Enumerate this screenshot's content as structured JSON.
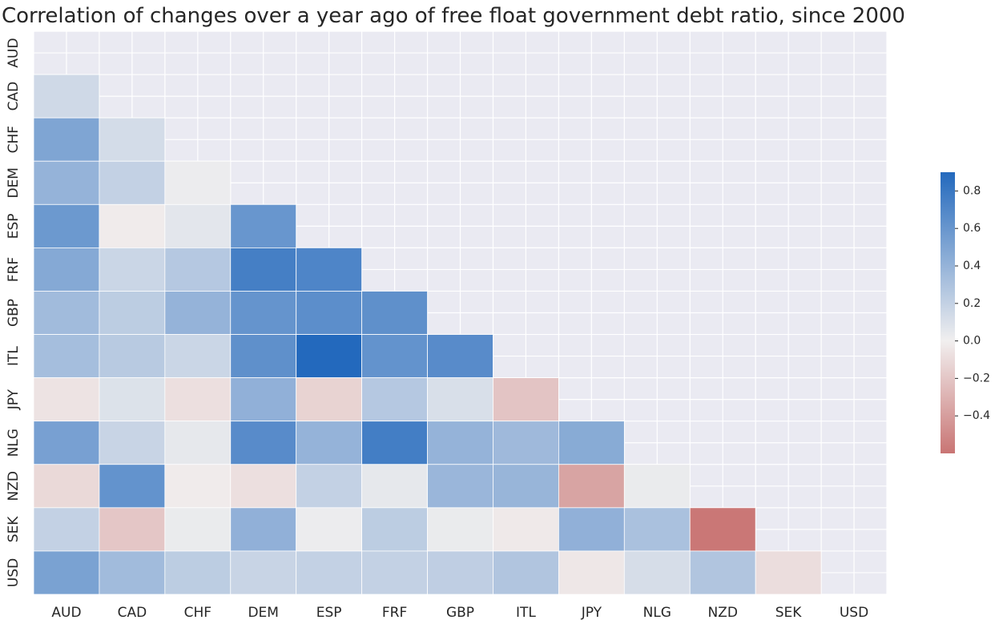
{
  "chart_data": {
    "type": "heatmap",
    "title": "Correlation of changes over a year ago of free float government debt ratio, since 2000",
    "xlabel": "",
    "ylabel": "",
    "categories": [
      "AUD",
      "CAD",
      "CHF",
      "DEM",
      "ESP",
      "FRF",
      "GBP",
      "ITL",
      "JPY",
      "NLG",
      "NZD",
      "SEK",
      "USD"
    ],
    "mask": "upper-triangle-including-diagonal",
    "matrix": [
      [
        null,
        null,
        null,
        null,
        null,
        null,
        null,
        null,
        null,
        null,
        null,
        null,
        null
      ],
      [
        0.15,
        null,
        null,
        null,
        null,
        null,
        null,
        null,
        null,
        null,
        null,
        null,
        null
      ],
      [
        0.5,
        0.13,
        null,
        null,
        null,
        null,
        null,
        null,
        null,
        null,
        null,
        null,
        null
      ],
      [
        0.4,
        0.2,
        0.02,
        null,
        null,
        null,
        null,
        null,
        null,
        null,
        null,
        null,
        null
      ],
      [
        0.58,
        -0.02,
        0.06,
        0.6,
        null,
        null,
        null,
        null,
        null,
        null,
        null,
        null,
        null
      ],
      [
        0.47,
        0.17,
        0.26,
        0.75,
        0.71,
        null,
        null,
        null,
        null,
        null,
        null,
        null,
        null
      ],
      [
        0.35,
        0.23,
        0.4,
        0.61,
        0.65,
        0.64,
        null,
        null,
        null,
        null,
        null,
        null,
        null
      ],
      [
        0.33,
        0.25,
        0.17,
        0.64,
        0.9,
        0.62,
        0.67,
        null,
        null,
        null,
        null,
        null,
        null
      ],
      [
        -0.06,
        0.09,
        -0.08,
        0.42,
        -0.14,
        0.26,
        0.11,
        -0.21,
        null,
        null,
        null,
        null,
        null
      ],
      [
        0.53,
        0.18,
        0.05,
        0.67,
        0.4,
        0.76,
        0.4,
        0.36,
        0.46,
        null,
        null,
        null,
        null
      ],
      [
        -0.11,
        0.62,
        -0.02,
        -0.08,
        0.2,
        0.05,
        0.38,
        0.39,
        -0.37,
        0.03,
        null,
        null,
        null
      ],
      [
        0.2,
        -0.2,
        0.03,
        0.42,
        0.02,
        0.23,
        0.03,
        -0.03,
        0.42,
        0.31,
        -0.59,
        null,
        null
      ],
      [
        0.52,
        0.35,
        0.23,
        0.18,
        0.2,
        0.2,
        0.22,
        0.28,
        -0.04,
        0.12,
        0.28,
        -0.09,
        null
      ]
    ],
    "colorbar": {
      "min": -0.6,
      "max": 0.9,
      "ticks": [
        "0.8",
        "0.6",
        "0.4",
        "0.2",
        "0.0",
        "−0.2",
        "−0.4"
      ],
      "tick_values": [
        0.8,
        0.6,
        0.4,
        0.2,
        0.0,
        -0.2,
        -0.4
      ],
      "colormap": "vlag"
    },
    "colors": {
      "positive": "#2369BD",
      "neutral": "#F1EFEF",
      "negative": "#C97574",
      "background": "#EAEAF2",
      "grid": "#FFFFFF"
    },
    "grid": true
  }
}
